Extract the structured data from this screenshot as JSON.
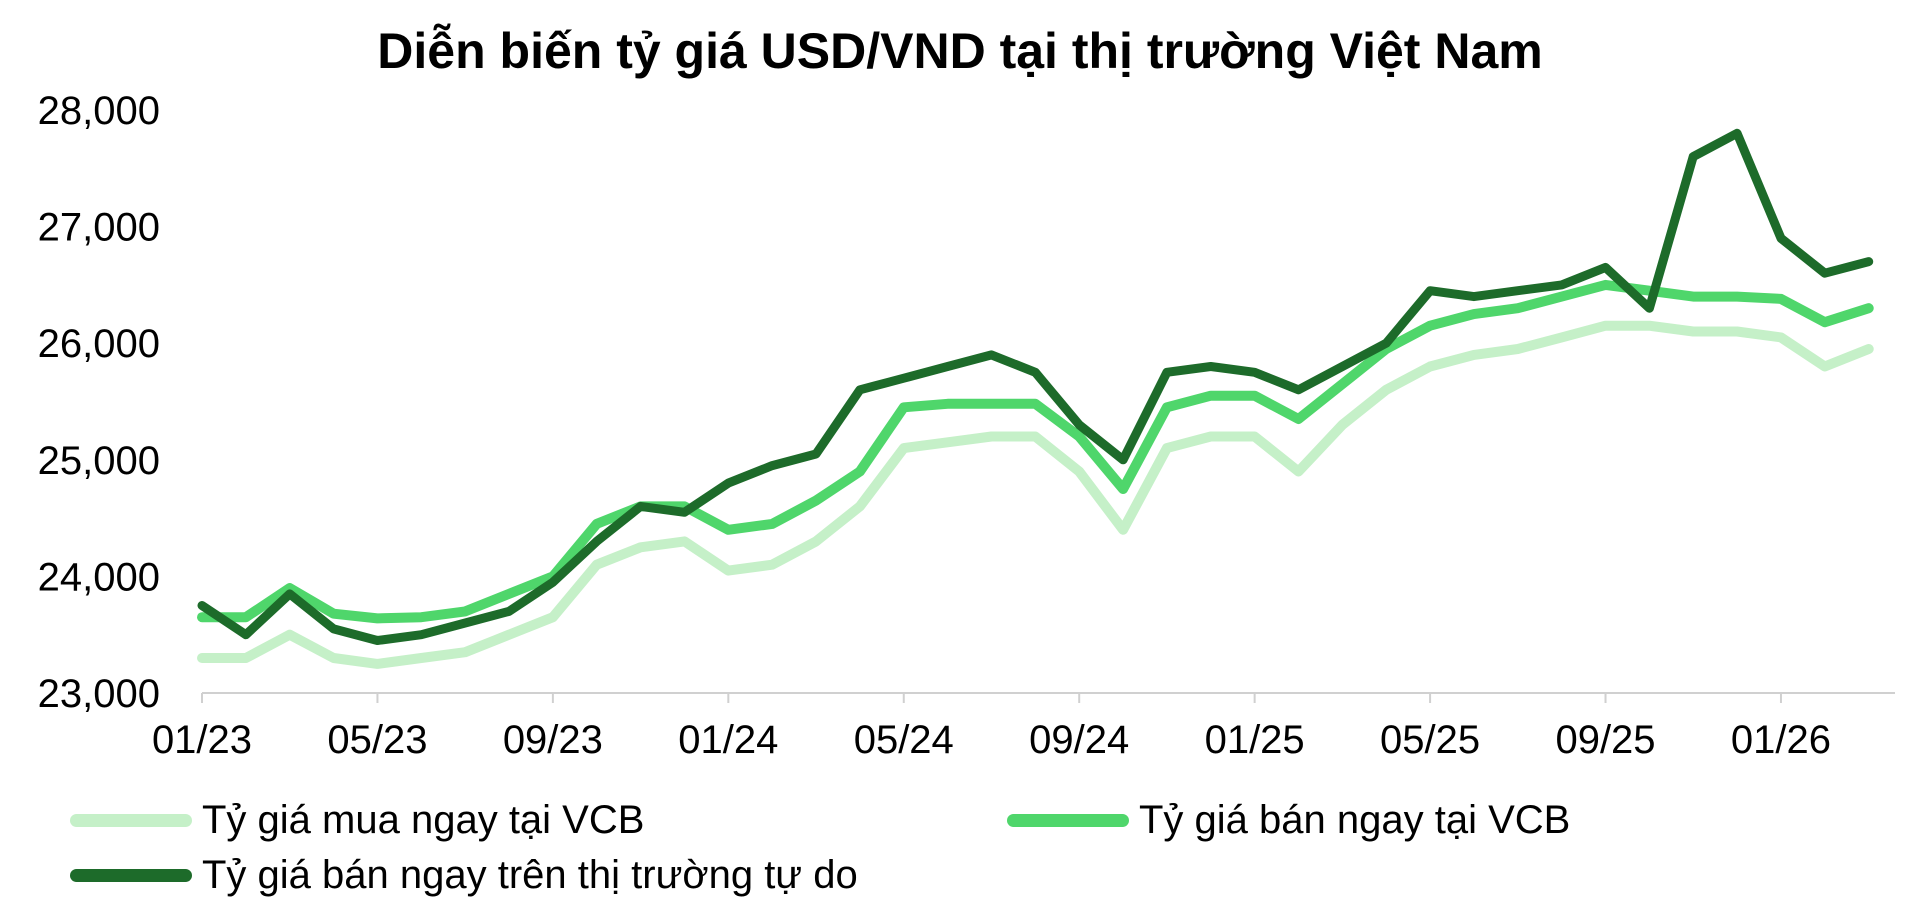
{
  "chart_data": {
    "type": "line",
    "title": "Diễn biến tỷ giá USD/VND tại thị trường Việt Nam",
    "xlabel": "",
    "ylabel": "",
    "ylim": [
      23000,
      28000
    ],
    "yticks": [
      "23,000",
      "24,000",
      "25,000",
      "26,000",
      "27,000",
      "28,000"
    ],
    "xticks": [
      "01/23",
      "05/23",
      "09/23",
      "01/24",
      "05/24",
      "09/24",
      "01/25",
      "05/25",
      "09/25",
      "01/26"
    ],
    "x": [
      "01/23",
      "02/23",
      "03/23",
      "04/23",
      "05/23",
      "06/23",
      "07/23",
      "08/23",
      "09/23",
      "10/23",
      "11/23",
      "12/23",
      "01/24",
      "02/24",
      "03/24",
      "04/24",
      "05/24",
      "06/24",
      "07/24",
      "08/24",
      "09/24",
      "10/24",
      "11/24",
      "12/24",
      "01/25",
      "02/25",
      "03/25",
      "04/25",
      "05/25",
      "06/25",
      "07/25",
      "08/25",
      "09/25",
      "10/25",
      "11/25",
      "12/25",
      "01/26",
      "02/26",
      "03/26"
    ],
    "grid": false,
    "legend_position": "bottom",
    "series": [
      {
        "name": "Tỷ giá mua ngay tại VCB",
        "color": "#c5f0c8",
        "values": [
          23300,
          23300,
          23500,
          23300,
          23250,
          23300,
          23350,
          23500,
          23650,
          24100,
          24250,
          24300,
          24050,
          24100,
          24300,
          24600,
          25100,
          25150,
          25200,
          25200,
          24900,
          24400,
          25100,
          25200,
          25200,
          24900,
          25300,
          25600,
          25800,
          25900,
          25950,
          26050,
          26150,
          26150,
          26100,
          26100,
          26050,
          25800,
          25950
        ]
      },
      {
        "name": "Tỷ giá bán ngay tại VCB",
        "color": "#4fd66b",
        "values": [
          23650,
          23650,
          23900,
          23680,
          23640,
          23650,
          23700,
          23850,
          24000,
          24450,
          24600,
          24600,
          24400,
          24450,
          24650,
          24900,
          25450,
          25480,
          25480,
          25480,
          25200,
          24750,
          25450,
          25550,
          25550,
          25350,
          25650,
          25950,
          26150,
          26250,
          26300,
          26400,
          26500,
          26450,
          26400,
          26400,
          26380,
          26180,
          26300
        ]
      },
      {
        "name": "Tỷ giá bán ngay trên thị trường tự do",
        "color": "#1d6b2a",
        "values": [
          23750,
          23500,
          23850,
          23550,
          23450,
          23500,
          23600,
          23700,
          23950,
          24300,
          24600,
          24550,
          24800,
          24950,
          25050,
          25600,
          25700,
          25800,
          25900,
          25750,
          25300,
          25000,
          25750,
          25800,
          25750,
          25600,
          25800,
          26000,
          26450,
          26400,
          26450,
          26500,
          26650,
          26300,
          27600,
          27800,
          26900,
          26600,
          26700
        ]
      }
    ]
  }
}
